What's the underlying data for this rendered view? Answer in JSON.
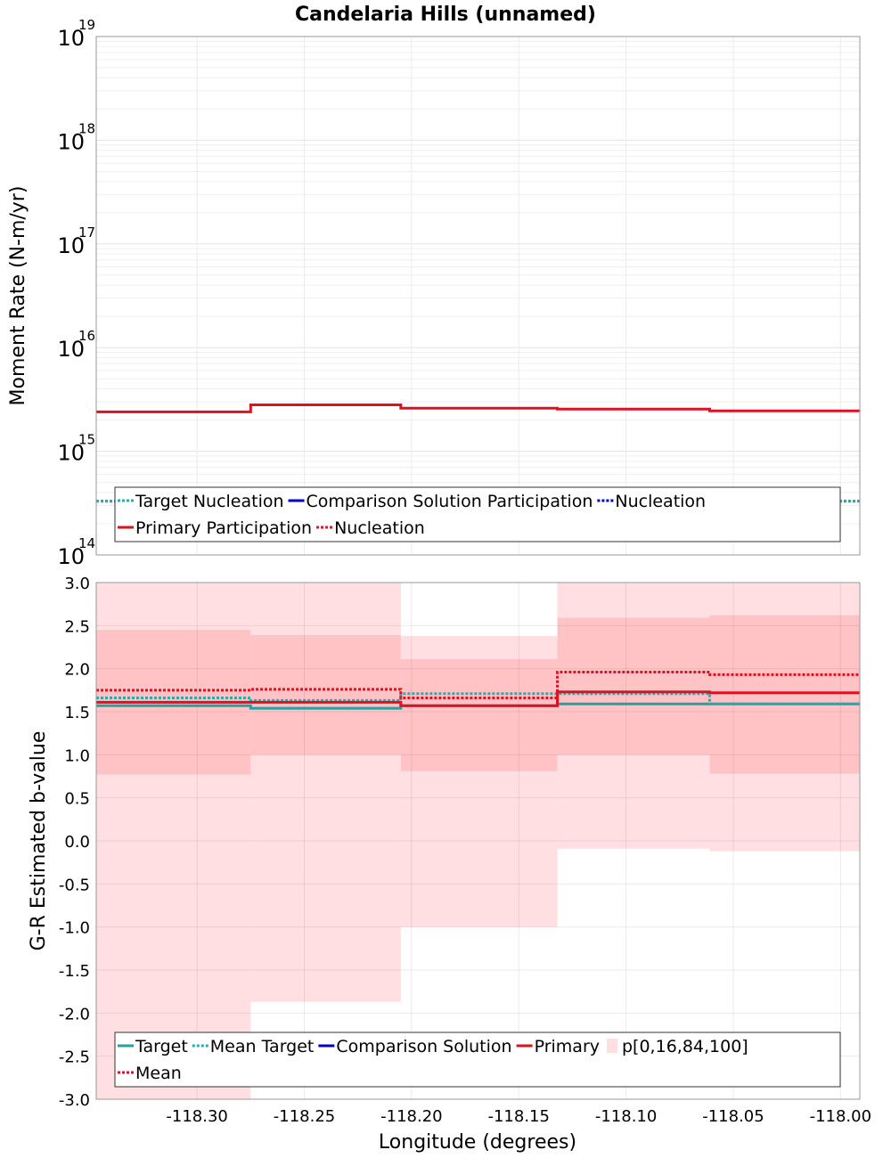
{
  "title": "Candelaria Hills (unnamed)",
  "xlabel": "Longitude (degrees)",
  "colors": {
    "target": "#26a0a0",
    "mean_target": "#1fb0b0",
    "comparison": "#0000cc",
    "primary": "#dd1122",
    "band_outer": "#ffdfe2",
    "band_inner": "#ffc3c6"
  },
  "chart_data": [
    {
      "type": "line",
      "name": "top",
      "ylabel": "Moment Rate (N-m/yr)",
      "y_scale": "log",
      "ylim": [
        100000000000000.0,
        1e+19
      ],
      "xlim": [
        -118.347,
        -117.991
      ],
      "y_tick_labels": [
        {
          "base": "10",
          "exp": "14",
          "value": 100000000000000.0
        },
        {
          "base": "10",
          "exp": "15",
          "value": 1000000000000000.0
        },
        {
          "base": "10",
          "exp": "16",
          "value": 1e+16
        },
        {
          "base": "10",
          "exp": "17",
          "value": 1e+17
        },
        {
          "base": "10",
          "exp": "18",
          "value": 1e+18
        },
        {
          "base": "10",
          "exp": "19",
          "value": 1e+19
        }
      ],
      "bin_edges": [
        -118.347,
        -118.275,
        -118.205,
        -118.132,
        -118.061,
        -117.991
      ],
      "series": [
        {
          "name": "Primary Participation",
          "style": "solid",
          "color": "#dd1122",
          "values": [
            2400000000000000.0,
            2800000000000000.0,
            2600000000000000.0,
            2550000000000000.0,
            2450000000000000.0
          ]
        },
        {
          "name": "Primary Nucleation",
          "style": "dotted",
          "color": "#dd1122",
          "values": [
            330000000000000.0,
            350000000000000.0,
            340000000000000.0,
            340000000000000.0,
            330000000000000.0
          ]
        },
        {
          "name": "Target Nucleation",
          "style": "dotted",
          "color": "#1fb0b0",
          "values": [
            330000000000000.0,
            350000000000000.0,
            340000000000000.0,
            340000000000000.0,
            330000000000000.0
          ]
        }
      ],
      "legend": {
        "placement": "bottom",
        "rows": [
          [
            {
              "label": "Target Nucleation",
              "style": "dotted",
              "color": "#1fb0b0"
            },
            {
              "label": "Comparison Solution Participation",
              "style": "solid",
              "color": "#0000cc"
            },
            {
              "label": "Nucleation",
              "style": "dotted",
              "color": "#0000cc"
            }
          ],
          [
            {
              "label": "Primary Participation",
              "style": "solid",
              "color": "#dd1122"
            },
            {
              "label": "Nucleation",
              "style": "dotted",
              "color": "#dd1122"
            }
          ]
        ]
      },
      "grid": true
    },
    {
      "type": "line",
      "name": "bottom",
      "ylabel": "G-R Estimated b-value",
      "xlabel": "Longitude (degrees)",
      "ylim": [
        -3.0,
        3.0
      ],
      "xlim": [
        -118.347,
        -117.991
      ],
      "y_ticks": [
        "-3.0",
        "-2.5",
        "-2.0",
        "-1.5",
        "-1.0",
        "-0.5",
        "0.0",
        "0.5",
        "1.0",
        "1.5",
        "2.0",
        "2.5",
        "3.0"
      ],
      "x_ticks": [
        "-118.30",
        "-118.25",
        "-118.20",
        "-118.15",
        "-118.10",
        "-118.05",
        "-118.00"
      ],
      "bin_edges": [
        -118.347,
        -118.275,
        -118.205,
        -118.132,
        -118.061,
        -117.991
      ],
      "percentiles": {
        "p0": [
          -3.0,
          -1.87,
          -1.0,
          -0.09,
          -0.12
        ],
        "p16": [
          0.77,
          1.0,
          0.81,
          1.0,
          0.78
        ],
        "p84": [
          2.45,
          2.39,
          2.11,
          2.59,
          2.62
        ],
        "p100": [
          3.0,
          3.0,
          2.38,
          3.0,
          3.0
        ]
      },
      "series": [
        {
          "name": "Target",
          "style": "solid",
          "color": "#26a0a0",
          "values": [
            1.57,
            1.54,
            1.57,
            1.59,
            1.59
          ]
        },
        {
          "name": "Mean Target",
          "style": "dotted",
          "color": "#1fb0b0",
          "values": [
            1.66,
            1.63,
            1.71,
            1.71,
            1.59
          ]
        },
        {
          "name": "Primary",
          "style": "solid",
          "color": "#dd1122",
          "values": [
            1.61,
            1.61,
            1.57,
            1.73,
            1.72
          ]
        },
        {
          "name": "Mean",
          "style": "dotted",
          "color": "#dd1122",
          "values": [
            1.75,
            1.76,
            1.66,
            1.96,
            1.93
          ]
        }
      ],
      "legend": {
        "placement": "bottom",
        "rows": [
          [
            {
              "label": "Target",
              "style": "solid",
              "color": "#26a0a0"
            },
            {
              "label": "Mean Target",
              "style": "dotted",
              "color": "#1fb0b0"
            },
            {
              "label": "Comparison Solution",
              "style": "solid",
              "color": "#0000cc"
            },
            {
              "label": "Primary",
              "style": "solid",
              "color": "#dd1122"
            },
            {
              "label": "p[0,16,84,100]",
              "style": "band",
              "color": "#ffdfe2"
            }
          ],
          [
            {
              "label": "Mean",
              "style": "dotted",
              "color": "#dd1122"
            }
          ]
        ]
      },
      "grid": true
    }
  ]
}
